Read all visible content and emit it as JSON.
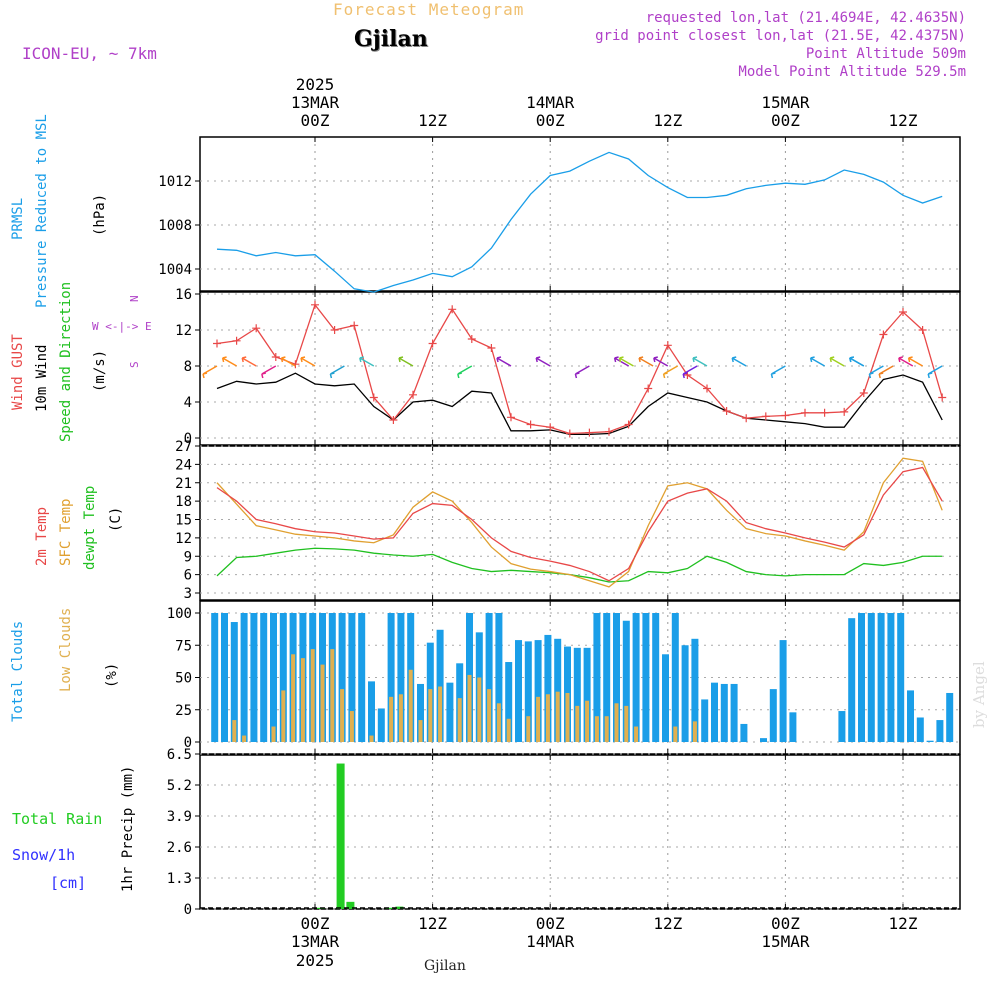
{
  "header": {
    "product": "Forecast Meteogram",
    "location": "Gjilan",
    "model": "ICON-EU, ~ 7km",
    "requested": "requested lon,lat (21.4694E, 42.4635N)",
    "grid": "grid point closest lon,lat (21.5E, 42.4375N)",
    "point_alt": "Point Altitude 509m",
    "model_alt": "Model Point Altitude 529.5m"
  },
  "time_axis": {
    "top": [
      {
        "line1": "2025",
        "line2": "13MAR",
        "line3": "00Z"
      },
      {
        "line1": "",
        "line2": "",
        "line3": "12Z"
      },
      {
        "line1": "",
        "line2": "14MAR",
        "line3": "00Z"
      },
      {
        "line1": "",
        "line2": "",
        "line3": "12Z"
      },
      {
        "line1": "",
        "line2": "15MAR",
        "line3": "00Z"
      },
      {
        "line1": "",
        "line2": "",
        "line3": "12Z"
      }
    ],
    "bottom": [
      {
        "line1": "00Z",
        "line2": "13MAR",
        "line3": "2025"
      },
      {
        "line1": "12Z",
        "line2": "",
        "line3": ""
      },
      {
        "line1": "00Z",
        "line2": "14MAR",
        "line3": ""
      },
      {
        "line1": "12Z",
        "line2": "",
        "line3": ""
      },
      {
        "line1": "00Z",
        "line2": "15MAR",
        "line3": ""
      },
      {
        "line1": "12Z",
        "line2": "",
        "line3": ""
      }
    ],
    "footer": "Gjilan",
    "watermark": "by Angel"
  },
  "panels": {
    "pressure": {
      "label1": "PRMSL",
      "label2": "Pressure Reduced to MSL",
      "unit": "(hPa)"
    },
    "wind": {
      "label1": "Wind GUST",
      "label2": "10m Wind",
      "label3": "Speed and Direction",
      "unit": "(m/s)",
      "compass_n": "N",
      "compass_we": "W <-|-> E",
      "compass_s": "S"
    },
    "temp": {
      "label1": "2m Temp",
      "label2": "SFC Temp",
      "label3": "dewpt Temp",
      "unit": "(C)"
    },
    "clouds": {
      "label1": "Total Clouds",
      "label2": "Low Clouds",
      "unit": "(%)"
    },
    "precip": {
      "label1": "Total  Rain",
      "label2": "Snow/1h",
      "label3": "[cm]",
      "unit": "1hr Precip (mm)"
    }
  },
  "colors": {
    "pressure": "#1a9ee8",
    "gust": "#e84848",
    "wind": "#000000",
    "t2m": "#e84848",
    "sfc": "#e0a030",
    "dewpt": "#20c020",
    "total_cloud": "#1a9ee8",
    "low_cloud": "#e0b050",
    "rain": "#22cc22",
    "snow": "#3030ff",
    "title_orange": "#f0c070",
    "purple": "#b040c8"
  },
  "chart_data": [
    {
      "type": "line",
      "title": "PRMSL",
      "ylabel": "(hPa)",
      "ylim": [
        1002,
        1016
      ],
      "yticks": [
        1004,
        1008,
        1012
      ],
      "x_hours": [
        -10,
        -8,
        -6,
        -4,
        -2,
        0,
        2,
        4,
        6,
        8,
        10,
        12,
        14,
        16,
        18,
        20,
        22,
        24,
        26,
        28,
        30,
        32,
        34,
        36,
        38,
        40,
        42,
        44,
        46,
        48,
        50,
        52,
        54,
        56,
        58,
        60,
        62,
        64
      ],
      "series": [
        {
          "name": "PRMSL",
          "values": [
            1005.8,
            1005.7,
            1005.2,
            1005.5,
            1005.2,
            1005.3,
            1003.8,
            1002.2,
            1001.9,
            1002.5,
            1003.0,
            1003.6,
            1003.3,
            1004.2,
            1005.9,
            1008.5,
            1010.8,
            1012.5,
            1012.9,
            1013.8,
            1014.6,
            1014.0,
            1012.5,
            1011.4,
            1010.5,
            1010.5,
            1010.7,
            1011.3,
            1011.6,
            1011.8,
            1011.7,
            1012.1,
            1013.0,
            1012.6,
            1011.9,
            1010.7,
            1010.0,
            1010.6
          ]
        }
      ]
    },
    {
      "type": "line",
      "title": "Wind",
      "ylabel": "(m/s)",
      "ylim": [
        0,
        16
      ],
      "yticks": [
        0,
        4,
        8,
        12,
        16
      ],
      "x_hours": [
        -10,
        -8,
        -6,
        -4,
        -2,
        0,
        2,
        4,
        6,
        8,
        10,
        12,
        14,
        16,
        18,
        20,
        22,
        24,
        26,
        28,
        30,
        32,
        34,
        36,
        38,
        40,
        42,
        44,
        46,
        48,
        50,
        52,
        54,
        56,
        58,
        60,
        62,
        64
      ],
      "series": [
        {
          "name": "Wind GUST",
          "values": [
            10.5,
            10.8,
            12.2,
            9.0,
            8.2,
            14.8,
            12.0,
            12.5,
            4.5,
            2.0,
            4.8,
            10.5,
            14.3,
            11.0,
            10.0,
            2.3,
            1.5,
            1.2,
            0.5,
            0.6,
            0.7,
            1.5,
            5.5,
            10.3,
            7.0,
            5.5,
            3.0,
            2.2,
            2.4,
            2.5,
            2.8,
            2.8,
            2.9,
            5.0,
            11.5,
            14.0,
            12.0,
            4.5
          ]
        },
        {
          "name": "10m Wind",
          "values": [
            5.5,
            6.3,
            6.0,
            6.2,
            7.2,
            6.0,
            5.8,
            6.0,
            3.5,
            2.0,
            4.0,
            4.2,
            3.5,
            5.2,
            5.0,
            0.8,
            0.8,
            0.9,
            0.4,
            0.4,
            0.5,
            1.3,
            3.5,
            5.0,
            4.5,
            4.0,
            3.0,
            2.2,
            2.0,
            1.8,
            1.6,
            1.2,
            1.2,
            4.0,
            6.5,
            7.0,
            6.2,
            2.0
          ]
        }
      ]
    },
    {
      "type": "line",
      "title": "Temperature",
      "ylabel": "(C)",
      "ylim": [
        3,
        27
      ],
      "yticks": [
        3,
        6,
        9,
        12,
        15,
        18,
        21,
        24,
        27
      ],
      "x_hours": [
        -10,
        -8,
        -6,
        -4,
        -2,
        0,
        2,
        4,
        6,
        8,
        10,
        12,
        14,
        16,
        18,
        20,
        22,
        24,
        26,
        28,
        30,
        32,
        34,
        36,
        38,
        40,
        42,
        44,
        46,
        48,
        50,
        52,
        54,
        56,
        58,
        60,
        62,
        64
      ],
      "series": [
        {
          "name": "2m Temp",
          "values": [
            20.2,
            18.0,
            15.0,
            14.3,
            13.5,
            13.0,
            12.8,
            12.3,
            11.8,
            12.0,
            16.0,
            17.6,
            17.3,
            15.0,
            12.0,
            9.8,
            8.8,
            8.2,
            7.5,
            6.5,
            5.0,
            7.0,
            13.0,
            18.0,
            19.3,
            20.0,
            18.0,
            14.5,
            13.5,
            12.8,
            12.0,
            11.3,
            10.5,
            12.5,
            19.0,
            22.8,
            23.5,
            18.0
          ]
        },
        {
          "name": "SFC Temp",
          "values": [
            21.0,
            17.5,
            14.0,
            13.3,
            12.6,
            12.3,
            12.0,
            11.5,
            11.2,
            12.5,
            17.0,
            19.5,
            18.0,
            14.5,
            10.5,
            7.8,
            6.9,
            6.5,
            6.0,
            5.0,
            4.0,
            6.5,
            14.0,
            20.5,
            21.0,
            20.0,
            16.5,
            13.5,
            12.7,
            12.3,
            11.5,
            10.8,
            10.0,
            13.0,
            21.0,
            25.0,
            24.5,
            16.5
          ]
        },
        {
          "name": "dewpt Temp",
          "values": [
            5.8,
            8.8,
            9.0,
            9.5,
            10.0,
            10.3,
            10.2,
            10.0,
            9.5,
            9.2,
            9.0,
            9.3,
            8.0,
            7.0,
            6.5,
            6.7,
            6.5,
            6.3,
            6.0,
            5.5,
            4.8,
            5.0,
            6.5,
            6.3,
            7.0,
            9.0,
            8.0,
            6.5,
            6.0,
            5.8,
            6.0,
            6.0,
            6.0,
            7.8,
            7.5,
            8.0,
            9.0,
            9.0
          ]
        }
      ]
    },
    {
      "type": "bar",
      "title": "Clouds",
      "ylabel": "(%)",
      "ylim": [
        0,
        100
      ],
      "yticks": [
        0,
        25,
        50,
        75,
        100
      ],
      "x_hours": [
        -11,
        -10,
        -9,
        -8,
        -7,
        -6,
        -5,
        -4,
        -3,
        -2,
        -1,
        0,
        1,
        2,
        3,
        4,
        5,
        6,
        7,
        8,
        9,
        10,
        11,
        12,
        13,
        14,
        15,
        16,
        17,
        18,
        19,
        20,
        21,
        22,
        23,
        24,
        25,
        26,
        27,
        28,
        29,
        30,
        31,
        32,
        33,
        34,
        35,
        36,
        37,
        38,
        39,
        40,
        41,
        42,
        43,
        44,
        45,
        46,
        47,
        48,
        49,
        50,
        51,
        52,
        53,
        54,
        55,
        56,
        57,
        58,
        59,
        60,
        61,
        62,
        63,
        64
      ],
      "series": [
        {
          "name": "Total Clouds",
          "values": [
            100,
            100,
            93,
            100,
            100,
            100,
            100,
            100,
            100,
            100,
            100,
            100,
            100,
            100,
            100,
            100,
            47,
            26,
            100,
            100,
            100,
            45,
            77,
            87,
            46,
            61,
            100,
            85,
            100,
            100,
            62,
            79,
            78,
            79,
            83,
            80,
            74,
            73,
            73,
            100,
            100,
            100,
            94,
            100,
            100,
            100,
            68,
            100,
            75,
            80,
            33,
            46,
            45,
            45,
            14,
            0,
            3,
            41,
            79,
            23,
            0,
            0,
            0,
            0,
            24,
            96,
            100,
            100,
            100,
            100,
            100,
            40,
            19,
            1,
            17,
            38
          ]
        },
        {
          "name": "Low Clouds",
          "values": [
            0,
            0,
            17,
            5,
            0,
            0,
            12,
            40,
            68,
            65,
            72,
            60,
            72,
            41,
            24,
            0,
            5,
            0,
            35,
            37,
            56,
            17,
            41,
            43,
            0,
            34,
            52,
            50,
            41,
            30,
            18,
            0,
            20,
            35,
            37,
            39,
            38,
            28,
            32,
            20,
            20,
            30,
            28,
            12,
            0,
            0,
            0,
            12,
            0,
            16,
            0,
            0,
            0,
            0,
            0,
            0,
            0,
            0,
            0,
            0,
            0,
            0,
            0,
            0,
            0,
            0,
            0,
            0,
            0,
            0,
            0,
            0,
            0,
            0,
            0,
            0
          ]
        }
      ]
    },
    {
      "type": "bar",
      "title": "1hr Precip",
      "ylabel": "1hr Precip (mm)",
      "ylim": [
        0,
        6.5
      ],
      "yticks": [
        0,
        1.3,
        2.6,
        3.9,
        5.2,
        6.5
      ],
      "x_hours": [
        0,
        2,
        3,
        7,
        8
      ],
      "series": [
        {
          "name": "Total Rain",
          "values": [
            0.05,
            6.1,
            0.3,
            0.05,
            0.1
          ]
        }
      ]
    }
  ]
}
